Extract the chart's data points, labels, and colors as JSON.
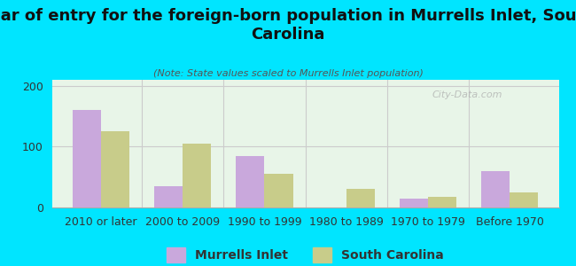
{
  "title": "Year of entry for the foreign-born population in Murrells Inlet, South\nCarolina",
  "subtitle": "(Note: State values scaled to Murrells Inlet population)",
  "categories": [
    "2010 or later",
    "2000 to 2009",
    "1990 to 1999",
    "1980 to 1989",
    "1970 to 1979",
    "Before 1970"
  ],
  "murrells_inlet": [
    160,
    35,
    85,
    0,
    15,
    60
  ],
  "south_carolina": [
    125,
    105,
    55,
    30,
    18,
    25
  ],
  "bar_color_mi": "#c9a8dc",
  "bar_color_sc": "#c8cc8a",
  "background_outer": "#00e5ff",
  "background_inner_top": "#e8f5e8",
  "background_inner_bottom": "#f0f8f0",
  "ylim": [
    0,
    210
  ],
  "yticks": [
    0,
    100,
    200
  ],
  "legend_label_mi": "Murrells Inlet",
  "legend_label_sc": "South Carolina",
  "watermark": "City-Data.com",
  "title_fontsize": 13,
  "subtitle_fontsize": 8,
  "axis_label_fontsize": 9,
  "legend_fontsize": 10
}
